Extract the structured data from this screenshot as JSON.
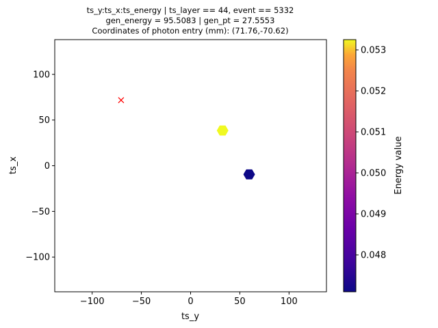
{
  "chart_data": {
    "type": "scatter",
    "title_lines": [
      "ts_y:ts_x:ts_energy   |   ts_layer == 44, event == 5332",
      "gen_energy = 95.5083    |    gen_pt = 27.5553",
      "Coordinates of photon entry (mm): (71.76,-70.62)"
    ],
    "xlabel": "ts_y",
    "ylabel": "ts_x",
    "xlim": [
      -138,
      138
    ],
    "ylim": [
      -138,
      138
    ],
    "xticks": [
      -100,
      -50,
      0,
      50,
      100
    ],
    "yticks": [
      -100,
      -50,
      0,
      50,
      100
    ],
    "x_tick_labels": [
      "−100",
      "−50",
      "0",
      "50",
      "100"
    ],
    "y_tick_labels": [
      "−100",
      "−50",
      "0",
      "50",
      "100"
    ],
    "grid": false,
    "points": [
      {
        "x": 32.5,
        "y": 38.5,
        "energy": 0.05325,
        "marker": "hexagon"
      },
      {
        "x": 59.5,
        "y": -9.5,
        "energy": 0.0471,
        "marker": "hexagon"
      }
    ],
    "photon_entry": {
      "x": -70.62,
      "y": 71.76,
      "marker": "x",
      "color": "#ff0000"
    },
    "colorbar": {
      "label": "Energy value",
      "colormap": "plasma",
      "min": 0.0471,
      "max": 0.05325,
      "ticks": [
        0.048,
        0.049,
        0.05,
        0.051,
        0.052,
        0.053
      ],
      "tick_labels": [
        "0.048",
        "0.049",
        "0.050",
        "0.051",
        "0.052",
        "0.053"
      ]
    }
  }
}
